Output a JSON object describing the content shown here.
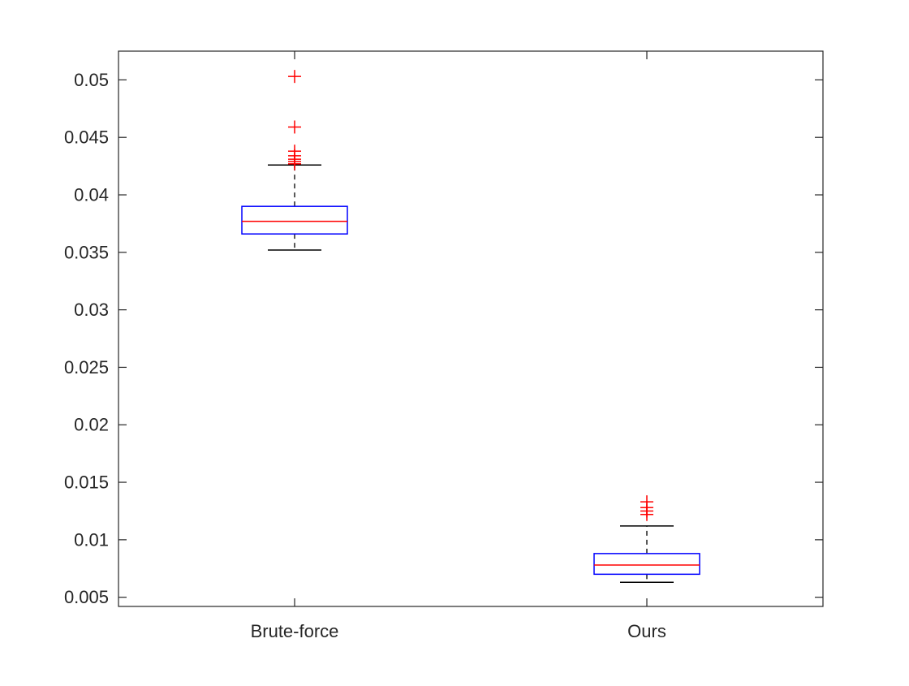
{
  "chart_data": {
    "type": "box",
    "title": "",
    "xlabel": "",
    "ylabel": "",
    "categories": [
      "Brute-force",
      "Ours"
    ],
    "ylim": [
      0.0042,
      0.0525
    ],
    "y_ticks": [
      0.005,
      0.01,
      0.015,
      0.02,
      0.025,
      0.03,
      0.035,
      0.04,
      0.045,
      0.05
    ],
    "y_tick_labels": [
      "0.005",
      "0.01",
      "0.015",
      "0.02",
      "0.025",
      "0.03",
      "0.035",
      "0.04",
      "0.045",
      "0.05"
    ],
    "grid": false,
    "boxes": [
      {
        "category": "Brute-force",
        "whisker_low": 0.0352,
        "q1": 0.0366,
        "median": 0.0377,
        "q3": 0.039,
        "whisker_high": 0.0426,
        "outliers": [
          0.0503,
          0.0459,
          0.0438,
          0.0434,
          0.0431,
          0.0429,
          0.0427
        ]
      },
      {
        "category": "Ours",
        "whisker_low": 0.0063,
        "q1": 0.007,
        "median": 0.0078,
        "q3": 0.0088,
        "whisker_high": 0.0112,
        "outliers": [
          0.0133,
          0.0128,
          0.0125,
          0.0122
        ]
      }
    ],
    "colors": {
      "box": "#0000ff",
      "median": "#ff0000",
      "whisker": "#000000",
      "outlier": "#ff0000",
      "axis": "#262626"
    }
  }
}
